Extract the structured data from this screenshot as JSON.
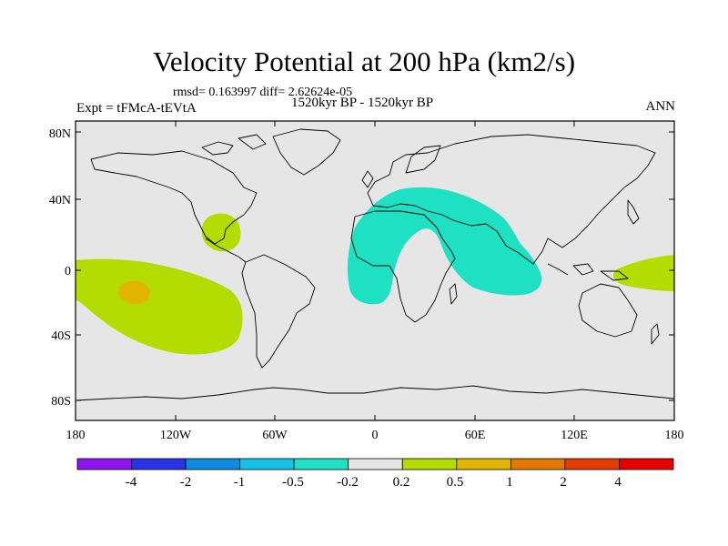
{
  "header": {
    "title": "Velocity Potential at 200 hPa (km2/s)",
    "stats": "rmsd= 0.163997 diff= 2.62624e-05",
    "experiment": "Expt = tFMcA-tEVtA",
    "period": "1520kyr BP - 1520kyr BP",
    "season": "ANN"
  },
  "map": {
    "background_color": "#e6e6e6",
    "coastline_color": "#000000",
    "lat_labels": [
      "80N",
      "40N",
      "0",
      "40S",
      "80S"
    ],
    "lon_labels": [
      "180",
      "120W",
      "60W",
      "0",
      "60E",
      "120E",
      "180"
    ],
    "anomalies": [
      {
        "name": "central-pacific-positive",
        "level": "0.2 to 0.5",
        "color": "#b4dc00"
      },
      {
        "name": "central-pacific-core",
        "level": "0.5 to 1",
        "color": "#e1b400"
      },
      {
        "name": "gulf-of-mexico-positive",
        "level": "0.2 to 0.5",
        "color": "#b4dc00"
      },
      {
        "name": "africa-asia-negative",
        "level": "-0.5 to -0.2",
        "color": "#1ee1c3"
      },
      {
        "name": "west-pacific-positive",
        "level": "0.2 to 0.5",
        "color": "#b4dc00"
      }
    ]
  },
  "colorbar": {
    "colors": [
      "#8c14f0",
      "#2832e6",
      "#0f8ce1",
      "#14c3e6",
      "#1ee1c3",
      "#e6e6e6",
      "#b4dc00",
      "#e1b400",
      "#e17800",
      "#e63c00",
      "#e60000"
    ],
    "labels": [
      "-4",
      "-2",
      "-1",
      "-0.5",
      "-0.2",
      "0.2",
      "0.5",
      "1",
      "2",
      "4"
    ]
  }
}
